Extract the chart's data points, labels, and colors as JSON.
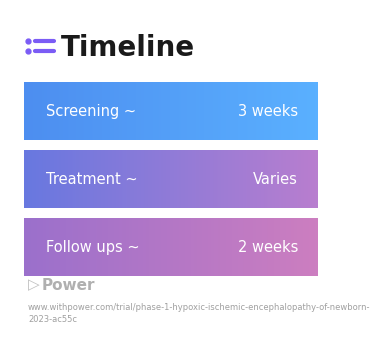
{
  "title": "Timeline",
  "background_color": "#ffffff",
  "title_color": "#1a1a1a",
  "title_fontsize": 20,
  "title_fontweight": "bold",
  "icon_color": "#7b5cf5",
  "icon_color2": "#7b5cf5",
  "rows": [
    {
      "label": "Screening ~",
      "value": "3 weeks",
      "color_left": "#4d8ef0",
      "color_right": "#5ab0ff"
    },
    {
      "label": "Treatment ~",
      "value": "Varies",
      "color_left": "#6878e0",
      "color_right": "#b87ecf"
    },
    {
      "label": "Follow ups ~",
      "value": "2 weeks",
      "color_left": "#9b70cc",
      "color_right": "#cc7ec0"
    }
  ],
  "footer_text": "Power",
  "footer_url": "www.withpower.com/trial/phase-1-hypoxic-ischemic-encephalopathy-of-newborn-\n2023-ac55c",
  "footer_fontsize": 6.0,
  "text_color": "#ffffff",
  "label_fontsize": 10.5,
  "value_fontsize": 10.5
}
